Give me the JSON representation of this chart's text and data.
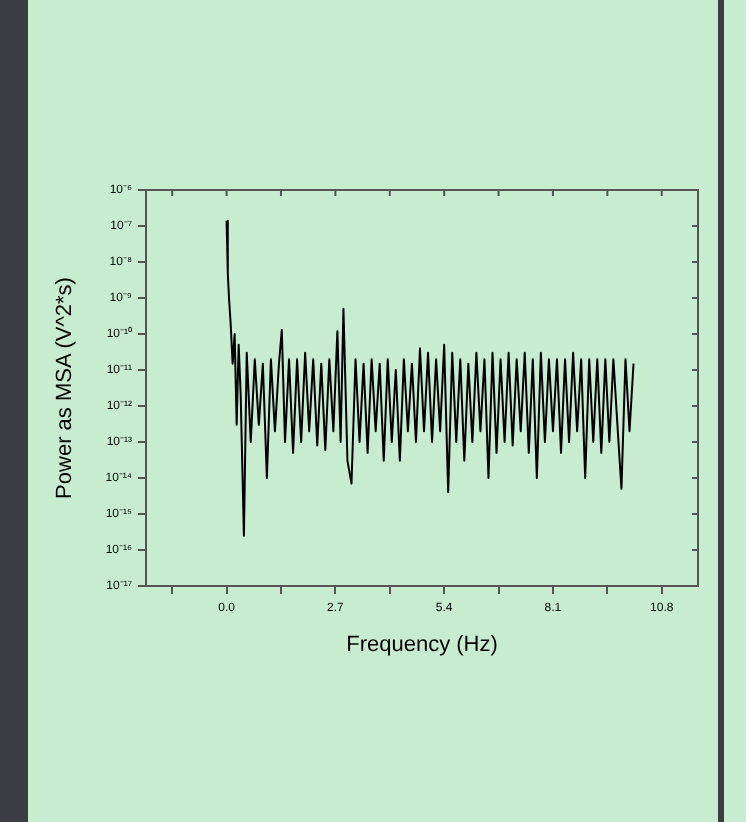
{
  "chart_data": {
    "type": "line",
    "xlabel": "Frequency (Hz)",
    "ylabel": "Power as MSA (V^2*s)",
    "log": "y",
    "grid": false,
    "legend": false,
    "marker": "none",
    "line_style": "solid",
    "x": [
      0,
      0.03,
      0.06,
      0.1,
      0.15,
      0.2,
      0.25,
      0.3,
      0.35,
      0.43,
      0.5,
      0.6,
      0.7,
      0.8,
      0.9,
      1.0,
      1.1,
      1.2,
      1.3,
      1.37,
      1.45,
      1.55,
      1.65,
      1.75,
      1.85,
      1.95,
      2.05,
      2.15,
      2.25,
      2.35,
      2.45,
      2.55,
      2.65,
      2.75,
      2.83,
      2.9,
      3.0,
      3.1,
      3.2,
      3.3,
      3.4,
      3.5,
      3.6,
      3.7,
      3.8,
      3.9,
      4.0,
      4.1,
      4.2,
      4.3,
      4.4,
      4.5,
      4.6,
      4.7,
      4.8,
      4.9,
      5.0,
      5.1,
      5.2,
      5.3,
      5.4,
      5.5,
      5.6,
      5.7,
      5.8,
      5.9,
      6.0,
      6.1,
      6.2,
      6.3,
      6.4,
      6.5,
      6.6,
      6.7,
      6.8,
      6.9,
      7.0,
      7.1,
      7.2,
      7.3,
      7.4,
      7.5,
      7.6,
      7.7,
      7.8,
      7.9,
      8.0,
      8.1,
      8.2,
      8.3,
      8.4,
      8.5,
      8.6,
      8.7,
      8.8,
      8.9,
      9.0,
      9.1,
      9.2,
      9.3,
      9.4,
      9.5,
      9.6,
      9.7,
      9.8,
      9.9,
      10.0,
      10.1
    ],
    "series": [
      {
        "color": "#000000",
        "values": [
          1.4e-07,
          5e-09,
          1e-09,
          2e-10,
          1.5e-11,
          1e-10,
          3e-13,
          5e-11,
          2e-12,
          2.5e-16,
          3e-11,
          1e-13,
          2e-11,
          3e-13,
          1.5e-11,
          1e-14,
          2e-11,
          2e-13,
          1.5e-11,
          1.3e-10,
          1e-13,
          2e-11,
          5e-14,
          2e-11,
          1e-13,
          3e-11,
          2e-13,
          2e-11,
          8e-14,
          1.5e-11,
          6e-14,
          2e-11,
          2e-13,
          1.2e-10,
          1e-13,
          5e-10,
          3e-14,
          7e-15,
          2e-11,
          1e-13,
          1.5e-11,
          5e-14,
          2e-11,
          2e-13,
          1.5e-11,
          3e-14,
          2e-11,
          1e-13,
          1e-11,
          3e-14,
          2e-11,
          2e-13,
          1.5e-11,
          1e-13,
          4e-11,
          2e-13,
          3e-11,
          1e-13,
          2e-11,
          2e-13,
          5e-11,
          4e-15,
          3e-11,
          1e-13,
          2e-11,
          3e-14,
          1.5e-11,
          1e-13,
          3e-11,
          2e-13,
          2e-11,
          1e-14,
          3e-11,
          5e-14,
          2e-11,
          1e-13,
          3e-11,
          8e-14,
          2e-11,
          2e-13,
          3e-11,
          5e-14,
          2e-11,
          1e-14,
          3e-11,
          1e-13,
          2e-11,
          2e-13,
          2e-11,
          5e-14,
          2e-11,
          1e-13,
          3e-11,
          2e-13,
          2e-11,
          1e-14,
          2e-11,
          1e-13,
          2e-11,
          5e-14,
          2e-11,
          1e-13,
          2e-11,
          3e-13,
          5e-15,
          2e-11,
          2e-13,
          1.5e-11
        ]
      }
    ],
    "xlim": [
      -2.0,
      11.7
    ],
    "xticks": [
      {
        "value": -1.35,
        "label": null
      },
      {
        "value": 0,
        "label": "0.0"
      },
      {
        "value": 1.35,
        "label": null
      },
      2.7,
      {
        "value": 4.05,
        "label": null
      },
      5.4,
      {
        "value": 6.75,
        "label": null
      },
      8.1,
      {
        "value": 9.45,
        "label": null
      },
      10.8
    ],
    "ylim": [
      1e-17,
      1e-06
    ],
    "yticks": [
      {
        "value": 1e-17,
        "label": "10⁻¹⁷"
      },
      {
        "value": 1e-16,
        "label": "10⁻¹⁶"
      },
      {
        "value": 1e-15,
        "label": "10⁻¹⁵"
      },
      {
        "value": 1e-14,
        "label": "10⁻¹⁴"
      },
      {
        "value": 1e-13,
        "label": "10⁻¹³"
      },
      {
        "value": 1e-12,
        "label": "10⁻¹²"
      },
      {
        "value": 1e-11,
        "label": "10⁻¹¹"
      },
      {
        "value": 1e-10,
        "label": "10⁻¹⁰"
      },
      {
        "value": 1e-09,
        "label": "10⁻⁹"
      },
      {
        "value": 1e-08,
        "label": "10⁻⁸"
      },
      {
        "value": 1e-07,
        "label": "10⁻⁷"
      },
      {
        "value": 1e-06,
        "label": "10⁻⁶"
      }
    ]
  }
}
